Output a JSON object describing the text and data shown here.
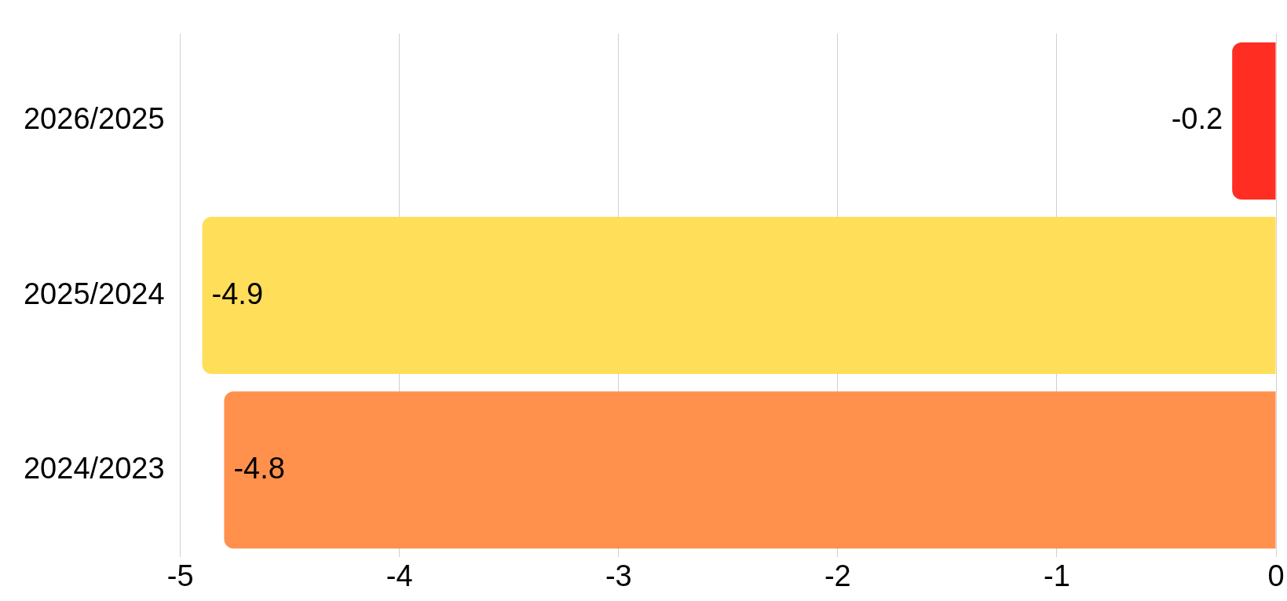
{
  "chart_data": {
    "type": "bar",
    "orientation": "horizontal",
    "categories": [
      "2026/2025",
      "2025/2024",
      "2024/2023"
    ],
    "values": [
      -0.2,
      -4.9,
      -4.8
    ],
    "colors": [
      "#ff2d22",
      "#ffde59",
      "#ff914d"
    ],
    "xlim": [
      -5,
      0
    ],
    "xticks": [
      -5,
      -4,
      -3,
      -2,
      -1,
      0
    ],
    "grid": "x",
    "legend": false,
    "data_labels": true
  }
}
